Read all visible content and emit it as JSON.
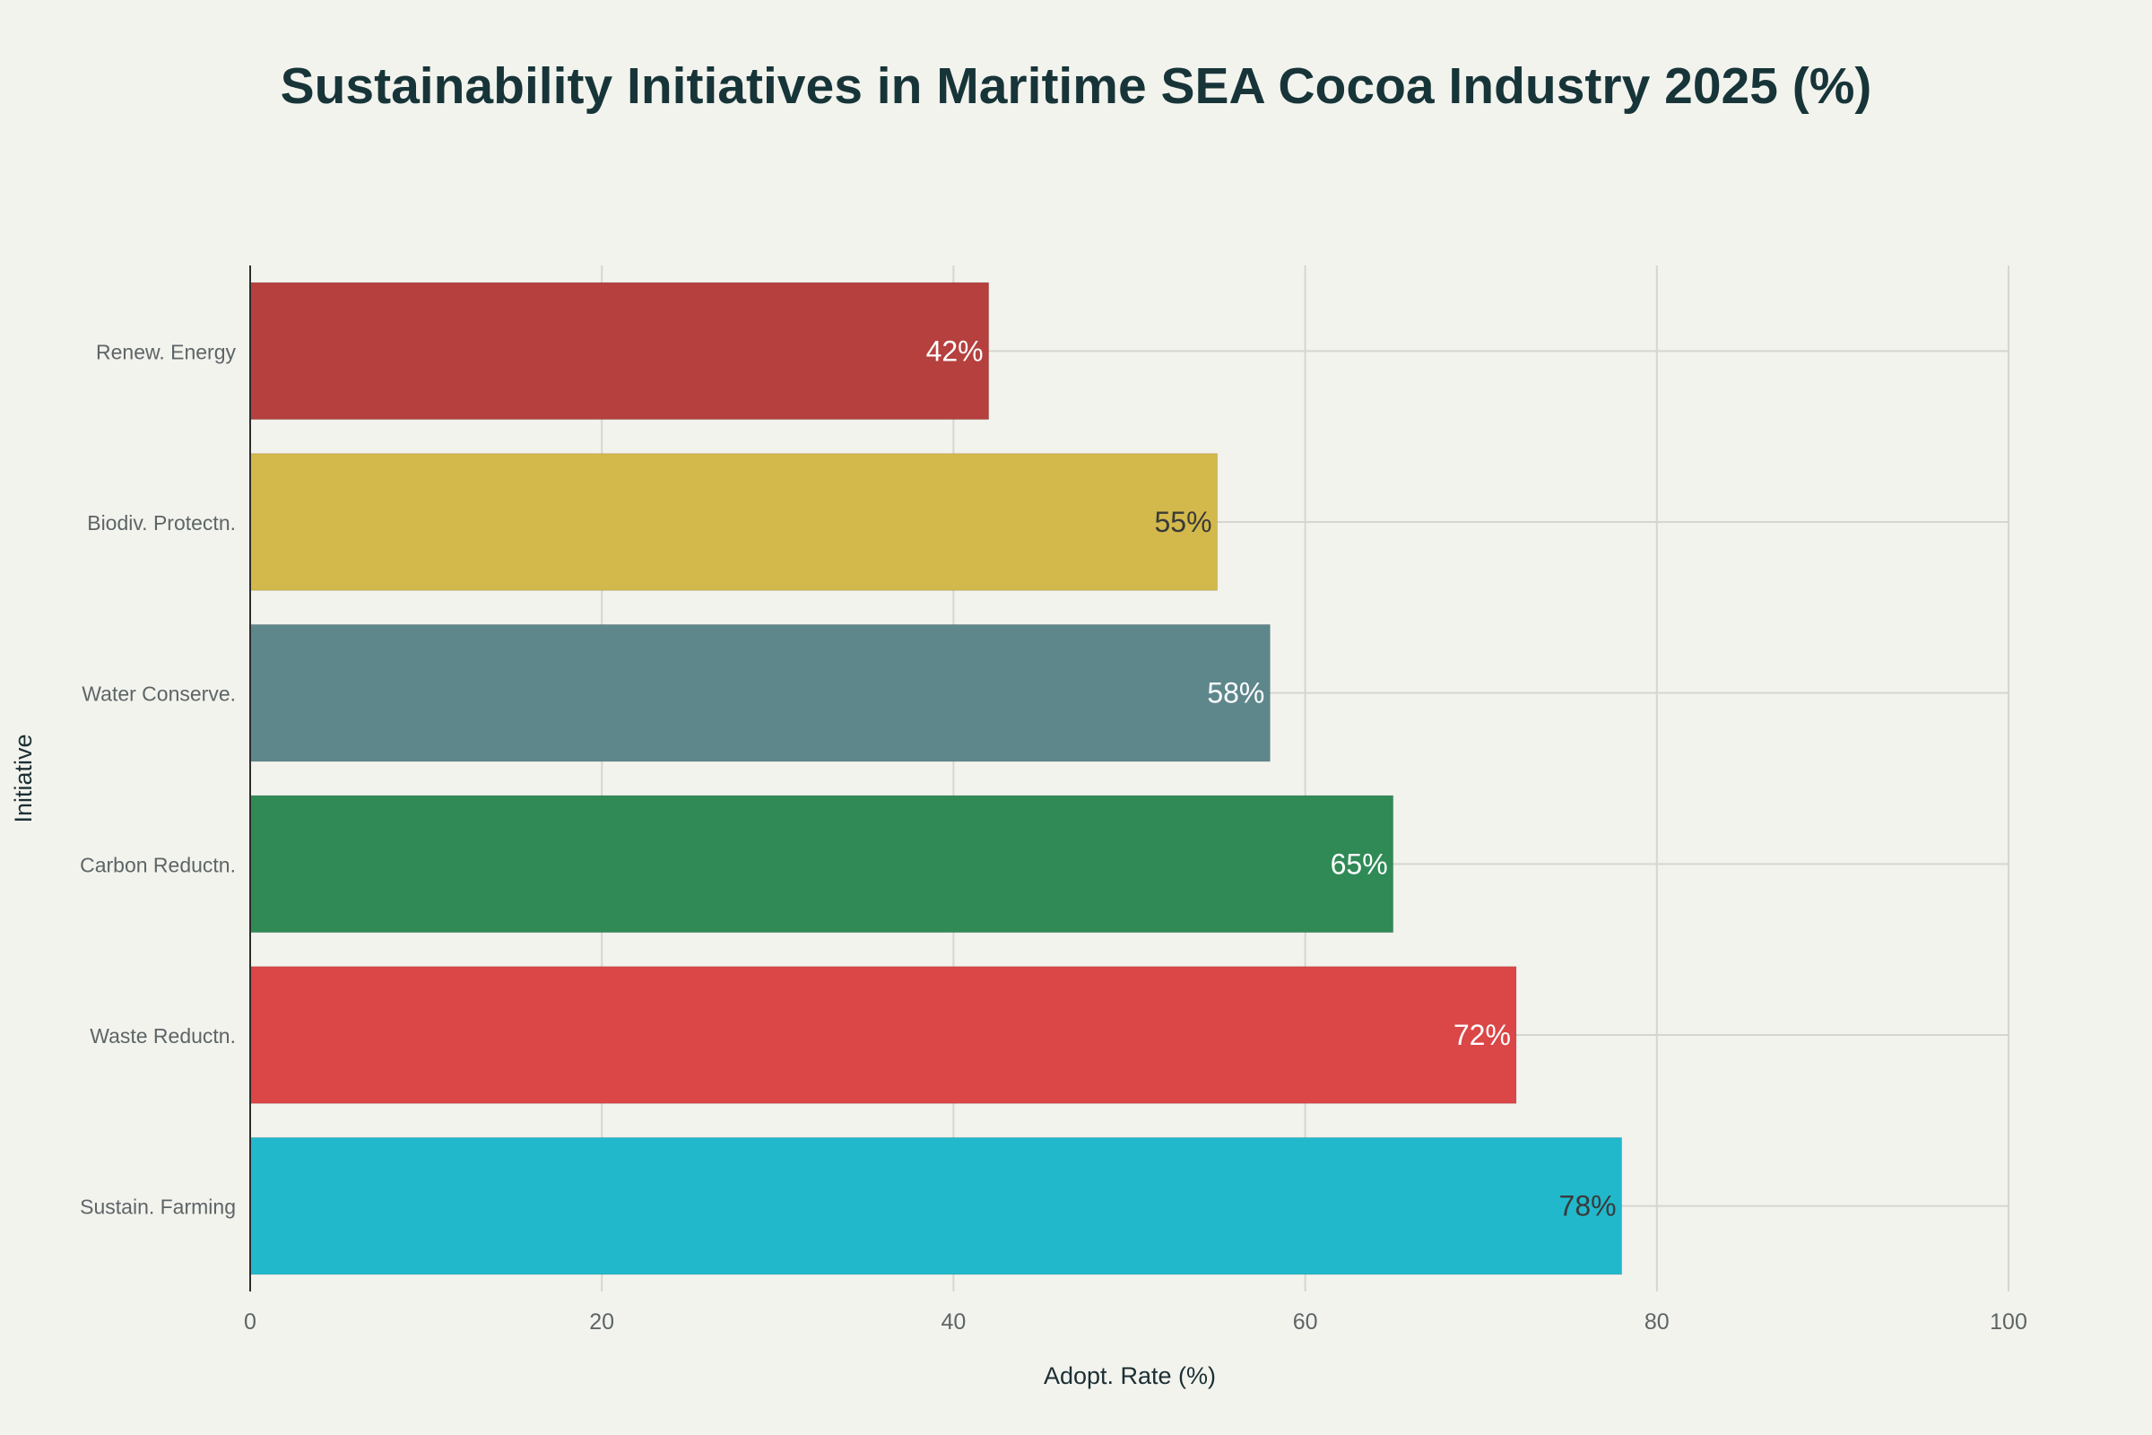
{
  "chart_data": {
    "type": "bar",
    "orientation": "horizontal",
    "title": "Sustainability Initiatives in Maritime SEA Cocoa Industry 2025 (%)",
    "xlabel": "Adopt. Rate (%)",
    "ylabel": "Initiative",
    "xlim": [
      0,
      100
    ],
    "xticks": [
      0,
      20,
      40,
      60,
      80,
      100
    ],
    "grid": true,
    "categories": [
      "Renew. Energy",
      "Biodiv. Protectn.",
      "Water Conserve.",
      "Carbon Reductn.",
      "Waste Reductn.",
      "Sustain. Farming"
    ],
    "values": [
      42,
      55,
      58,
      65,
      72,
      78
    ],
    "data_labels": [
      "42%",
      "55%",
      "58%",
      "65%",
      "72%",
      "78%"
    ],
    "colors": [
      "#b5403e",
      "#d3b94b",
      "#5e878c",
      "#2f8a56",
      "#db4647",
      "#21b8cc"
    ],
    "label_colors": [
      "#ffffff",
      "#3a3a3a",
      "#ffffff",
      "#ffffff",
      "#ffffff",
      "#3a3a3a"
    ]
  }
}
